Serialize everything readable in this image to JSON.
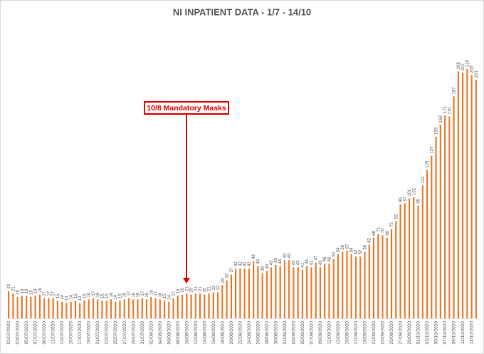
{
  "chart_data": {
    "type": "bar",
    "title": "NI INPATIENT DATA - 1/7 - 14/10",
    "color": "#ed7d31",
    "grid": false,
    "annotation": "10/8 Mandatory Masks",
    "categories": [
      "01/07/2020",
      null,
      "03/07/2020",
      null,
      "05/07/2020",
      null,
      "07/07/2020",
      null,
      "09/07/2020",
      null,
      "11/07/2020",
      null,
      "13/07/2020",
      null,
      "15/07/2020",
      null,
      "17/07/2020",
      null,
      "19/07/2020",
      null,
      "21/07/2020",
      null,
      "23/07/2020",
      null,
      "25/07/2020",
      null,
      "27/07/2020",
      null,
      "29/07/2020",
      null,
      "31/07/2020",
      null,
      "02/08/2020",
      null,
      "04/08/2020",
      null,
      "06/08/2020",
      null,
      "08/08/2020",
      null,
      "10/08/2020",
      null,
      "12/08/2020",
      null,
      "14/08/2020",
      null,
      "16/08/2020",
      null,
      "18/08/2020",
      null,
      "20/08/2020",
      null,
      "22/08/2020",
      null,
      "24/08/2020",
      null,
      "26/08/2020",
      null,
      "28/08/2020",
      null,
      "30/08/2020",
      null,
      "01/09/2020",
      null,
      "03/09/2020",
      null,
      "05/09/2020",
      null,
      "07/09/2020",
      null,
      "09/09/2020",
      null,
      "11/09/2020",
      null,
      "13/09/2020",
      null,
      "15/09/2020",
      null,
      "17/09/2020",
      null,
      "19/09/2020",
      null,
      "21/09/2020",
      null,
      "23/09/2020",
      null,
      "25/09/2020",
      null,
      "27/09/2020",
      null,
      "29/09/2020",
      null,
      "01/10/2020",
      null,
      "03/10/2020",
      null,
      "05/10/2020",
      null,
      "07/10/2020",
      null,
      "09/10/2020",
      null,
      "11/10/2020",
      null,
      "13/10/2020",
      null
    ],
    "values": [
      23,
      21,
      18,
      19,
      19,
      18,
      19,
      20,
      17,
      17,
      17,
      15,
      14,
      13,
      14,
      15,
      13,
      15,
      16,
      17,
      16,
      15,
      15,
      16,
      14,
      15,
      16,
      17,
      16,
      16,
      17,
      16,
      18,
      17,
      16,
      15,
      14,
      17,
      19,
      20,
      21,
      20,
      21,
      21,
      20,
      21,
      22,
      22,
      28,
      32,
      37,
      42,
      42,
      42,
      42,
      48,
      44,
      38,
      40,
      43,
      45,
      44,
      49,
      49,
      43,
      43,
      41,
      44,
      43,
      47,
      43,
      46,
      46,
      50,
      54,
      56,
      57,
      54,
      52,
      52,
      56,
      62,
      68,
      71,
      70,
      68,
      75,
      82,
      96,
      97,
      101,
      102,
      95,
      112,
      125,
      137,
      153,
      163,
      171,
      170,
      187,
      208,
      207,
      210,
      205,
      201
    ]
  }
}
